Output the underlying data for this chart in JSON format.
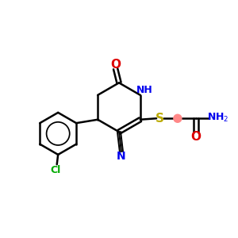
{
  "bg_color": "#ffffff",
  "atom_colors": {
    "C": "#000000",
    "N": "#0000ee",
    "O": "#dd0000",
    "S": "#bbaa00",
    "Cl": "#00aa00",
    "H": "#0000ee"
  },
  "bond_color": "#000000",
  "figsize": [
    3.0,
    3.0
  ],
  "dpi": 100,
  "lw": 1.8,
  "ring_r": 0.9,
  "hex_r": 1.05
}
